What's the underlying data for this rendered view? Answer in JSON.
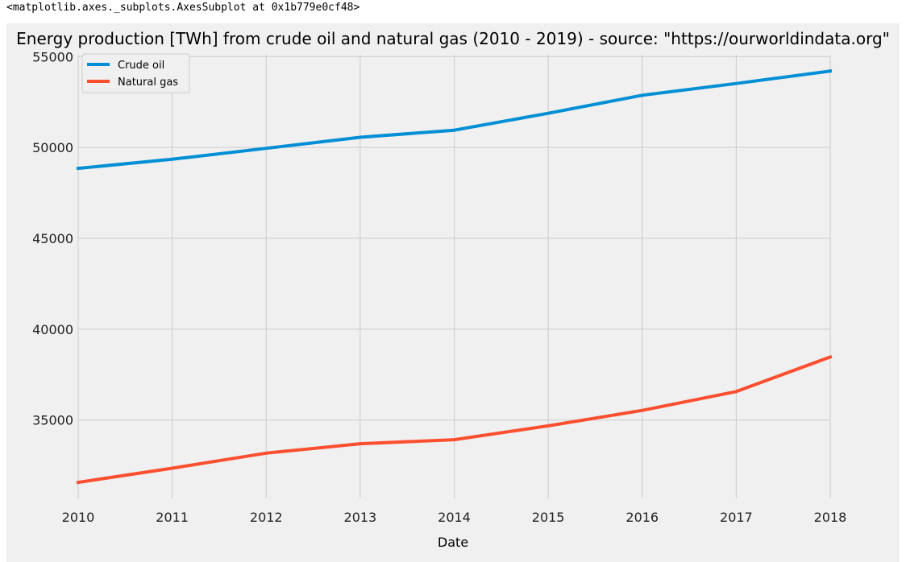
{
  "notebook": {
    "output_repr": "<matplotlib.axes._subplots.AxesSubplot at 0x1b779e0cf48>"
  },
  "colors": {
    "figure_background": "#f0f0f0",
    "grid": "#cbcbcb",
    "crude_oil": "#008fd5",
    "natural_gas": "#fc4f30"
  },
  "chart_data": {
    "type": "line",
    "title": "Energy production [TWh] from crude oil and natural gas (2010 - 2019) - source: \"https://ourworldindata.org\"",
    "xlabel": "Date",
    "ylabel": "",
    "x": [
      2010,
      2011,
      2012,
      2013,
      2014,
      2015,
      2016,
      2017,
      2018
    ],
    "x_tick_labels": [
      "2010",
      "2011",
      "2012",
      "2013",
      "2014",
      "2015",
      "2016",
      "2017",
      "2018"
    ],
    "y_ticks": [
      35000,
      40000,
      45000,
      50000,
      55000
    ],
    "y_tick_labels": [
      "35000",
      "40000",
      "45000",
      "50000",
      "55000"
    ],
    "xlim": [
      2010,
      2018
    ],
    "ylim": [
      30690,
      55100
    ],
    "grid": true,
    "legend_position": "top-left",
    "series": [
      {
        "name": "Crude oil",
        "color_key": "crude_oil",
        "values": [
          48850,
          49350,
          49950,
          50560,
          50950,
          51880,
          52870,
          53520,
          54200
        ]
      },
      {
        "name": "Natural gas",
        "color_key": "natural_gas",
        "values": [
          31570,
          32350,
          33180,
          33700,
          33920,
          34680,
          35530,
          36570,
          38470
        ]
      }
    ]
  }
}
